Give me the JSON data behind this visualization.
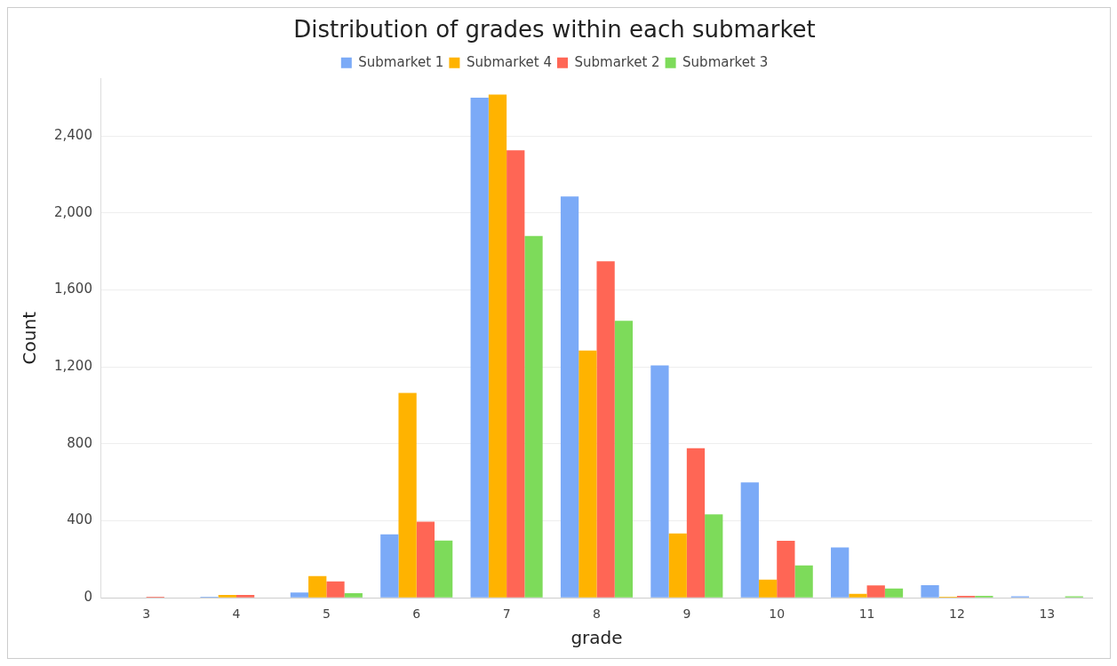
{
  "chart_data": {
    "type": "bar",
    "title": "Distribution of grades within each submarket",
    "xlabel": "grade",
    "ylabel": "Count",
    "categories": [
      "3",
      "4",
      "5",
      "6",
      "7",
      "8",
      "9",
      "10",
      "11",
      "12",
      "13"
    ],
    "series": [
      {
        "name": "Submarket 1",
        "color": "#7baaf7",
        "values": [
          0,
          5,
          28,
          330,
          2599,
          2086,
          1208,
          600,
          262,
          66,
          8
        ]
      },
      {
        "name": "Submarket 4",
        "color": "#ffb300",
        "values": [
          0,
          15,
          113,
          1065,
          2616,
          1285,
          334,
          94,
          20,
          6,
          0
        ]
      },
      {
        "name": "Submarket 2",
        "color": "#ff6655",
        "values": [
          5,
          15,
          85,
          396,
          2326,
          1749,
          778,
          296,
          64,
          10,
          0
        ]
      },
      {
        "name": "Submarket 3",
        "color": "#7ddb5a",
        "values": [
          0,
          0,
          24,
          297,
          1881,
          1440,
          434,
          168,
          48,
          10,
          8
        ]
      }
    ],
    "ylim": [
      0,
      2700
    ],
    "yticks": [
      0,
      400,
      800,
      {
        "value": 1200,
        "label": "1,200"
      },
      {
        "value": 1600,
        "label": "1,600"
      },
      {
        "value": 2000,
        "label": "2,000"
      },
      {
        "value": 2400,
        "label": "2,400"
      }
    ],
    "grid": "y",
    "legend": "top"
  }
}
